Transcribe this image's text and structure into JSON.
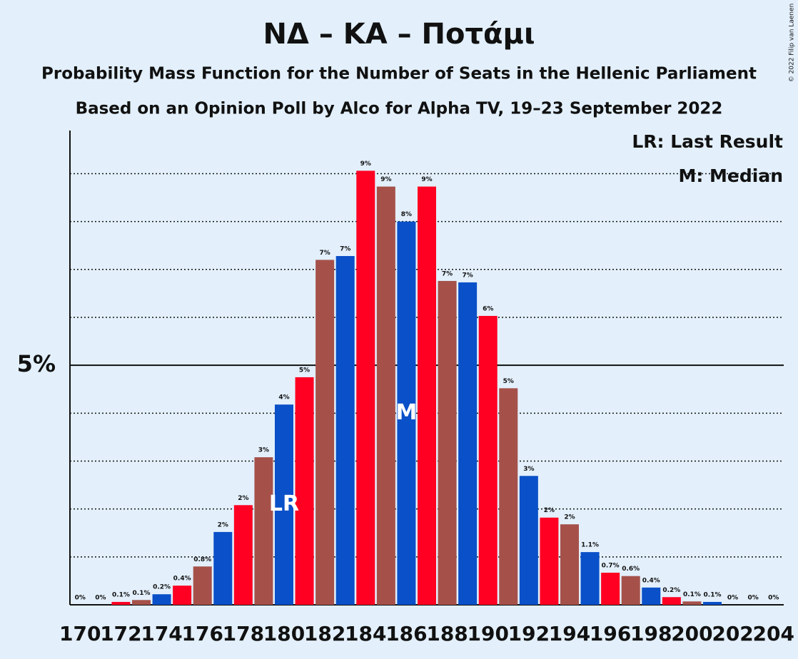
{
  "chart_data": {
    "type": "bar",
    "title": "ΝΔ – ΚΑ – Ποτάμι",
    "subtitle": "Probability Mass Function for the Number of Seats in the Hellenic Parliament",
    "subtitle2": "Based on an Opinion Poll by Alco for Alpha TV, 19–23 September 2022",
    "copyright": "© 2022 Filip van Laenen",
    "legend": [
      "LR: Last Result",
      "M: Median"
    ],
    "categories": [
      170,
      null,
      172,
      null,
      174,
      null,
      176,
      null,
      178,
      null,
      180,
      null,
      182,
      null,
      184,
      null,
      186,
      null,
      188,
      null,
      190,
      null,
      192,
      null,
      194,
      null,
      196,
      null,
      198,
      null,
      200,
      null,
      202,
      null,
      204
    ],
    "values": [
      0,
      0,
      0.06,
      0.1,
      0.22,
      0.4,
      0.8,
      1.52,
      2.08,
      3.08,
      4.18,
      4.75,
      7.2,
      7.28,
      9.06,
      8.73,
      8.0,
      8.73,
      6.76,
      6.73,
      6.03,
      4.52,
      2.69,
      1.82,
      1.68,
      1.1,
      0.67,
      0.6,
      0.36,
      0.16,
      0.07,
      0.06,
      0,
      0,
      0
    ],
    "value_labels": [
      "0%",
      "0%",
      "0.1%",
      "0.1%",
      "0.2%",
      "0.4%",
      "0.8%",
      "2%",
      "2%",
      "3%",
      "4%",
      "5%",
      "7%",
      "7%",
      "9%",
      "9%",
      "8%",
      "9%",
      "7%",
      "7%",
      "6%",
      "5%",
      "3%",
      "2%",
      "2%",
      "1.1%",
      "0.7%",
      "0.6%",
      "0.4%",
      "0.2%",
      "0.1%",
      "0.1%",
      "0%",
      "0%",
      "0%"
    ],
    "colors": [
      "#a5514a",
      "#0a50c8",
      "#ff0022",
      "#a5514a",
      "#0a50c8",
      "#ff0022",
      "#a5514a",
      "#0a50c8",
      "#ff0022",
      "#a5514a",
      "#0a50c8",
      "#ff0022",
      "#a5514a",
      "#0a50c8",
      "#ff0022",
      "#a5514a",
      "#0a50c8",
      "#ff0022",
      "#a5514a",
      "#0a50c8",
      "#ff0022",
      "#a5514a",
      "#0a50c8",
      "#ff0022",
      "#a5514a",
      "#0a50c8",
      "#ff0022",
      "#a5514a",
      "#0a50c8",
      "#ff0022",
      "#a5514a",
      "#0a50c8",
      "#ff0022",
      "#a5514a",
      "#0a50c8"
    ],
    "markers": [
      {
        "label": "LR",
        "seat": 180
      },
      {
        "label": "M",
        "seat": 186
      }
    ],
    "ylim": [
      0,
      9.9
    ],
    "yticks": [
      {
        "value": 5,
        "label": "5%"
      }
    ],
    "grid_lines": [
      1,
      2,
      3,
      4,
      6,
      7,
      8,
      9
    ]
  }
}
